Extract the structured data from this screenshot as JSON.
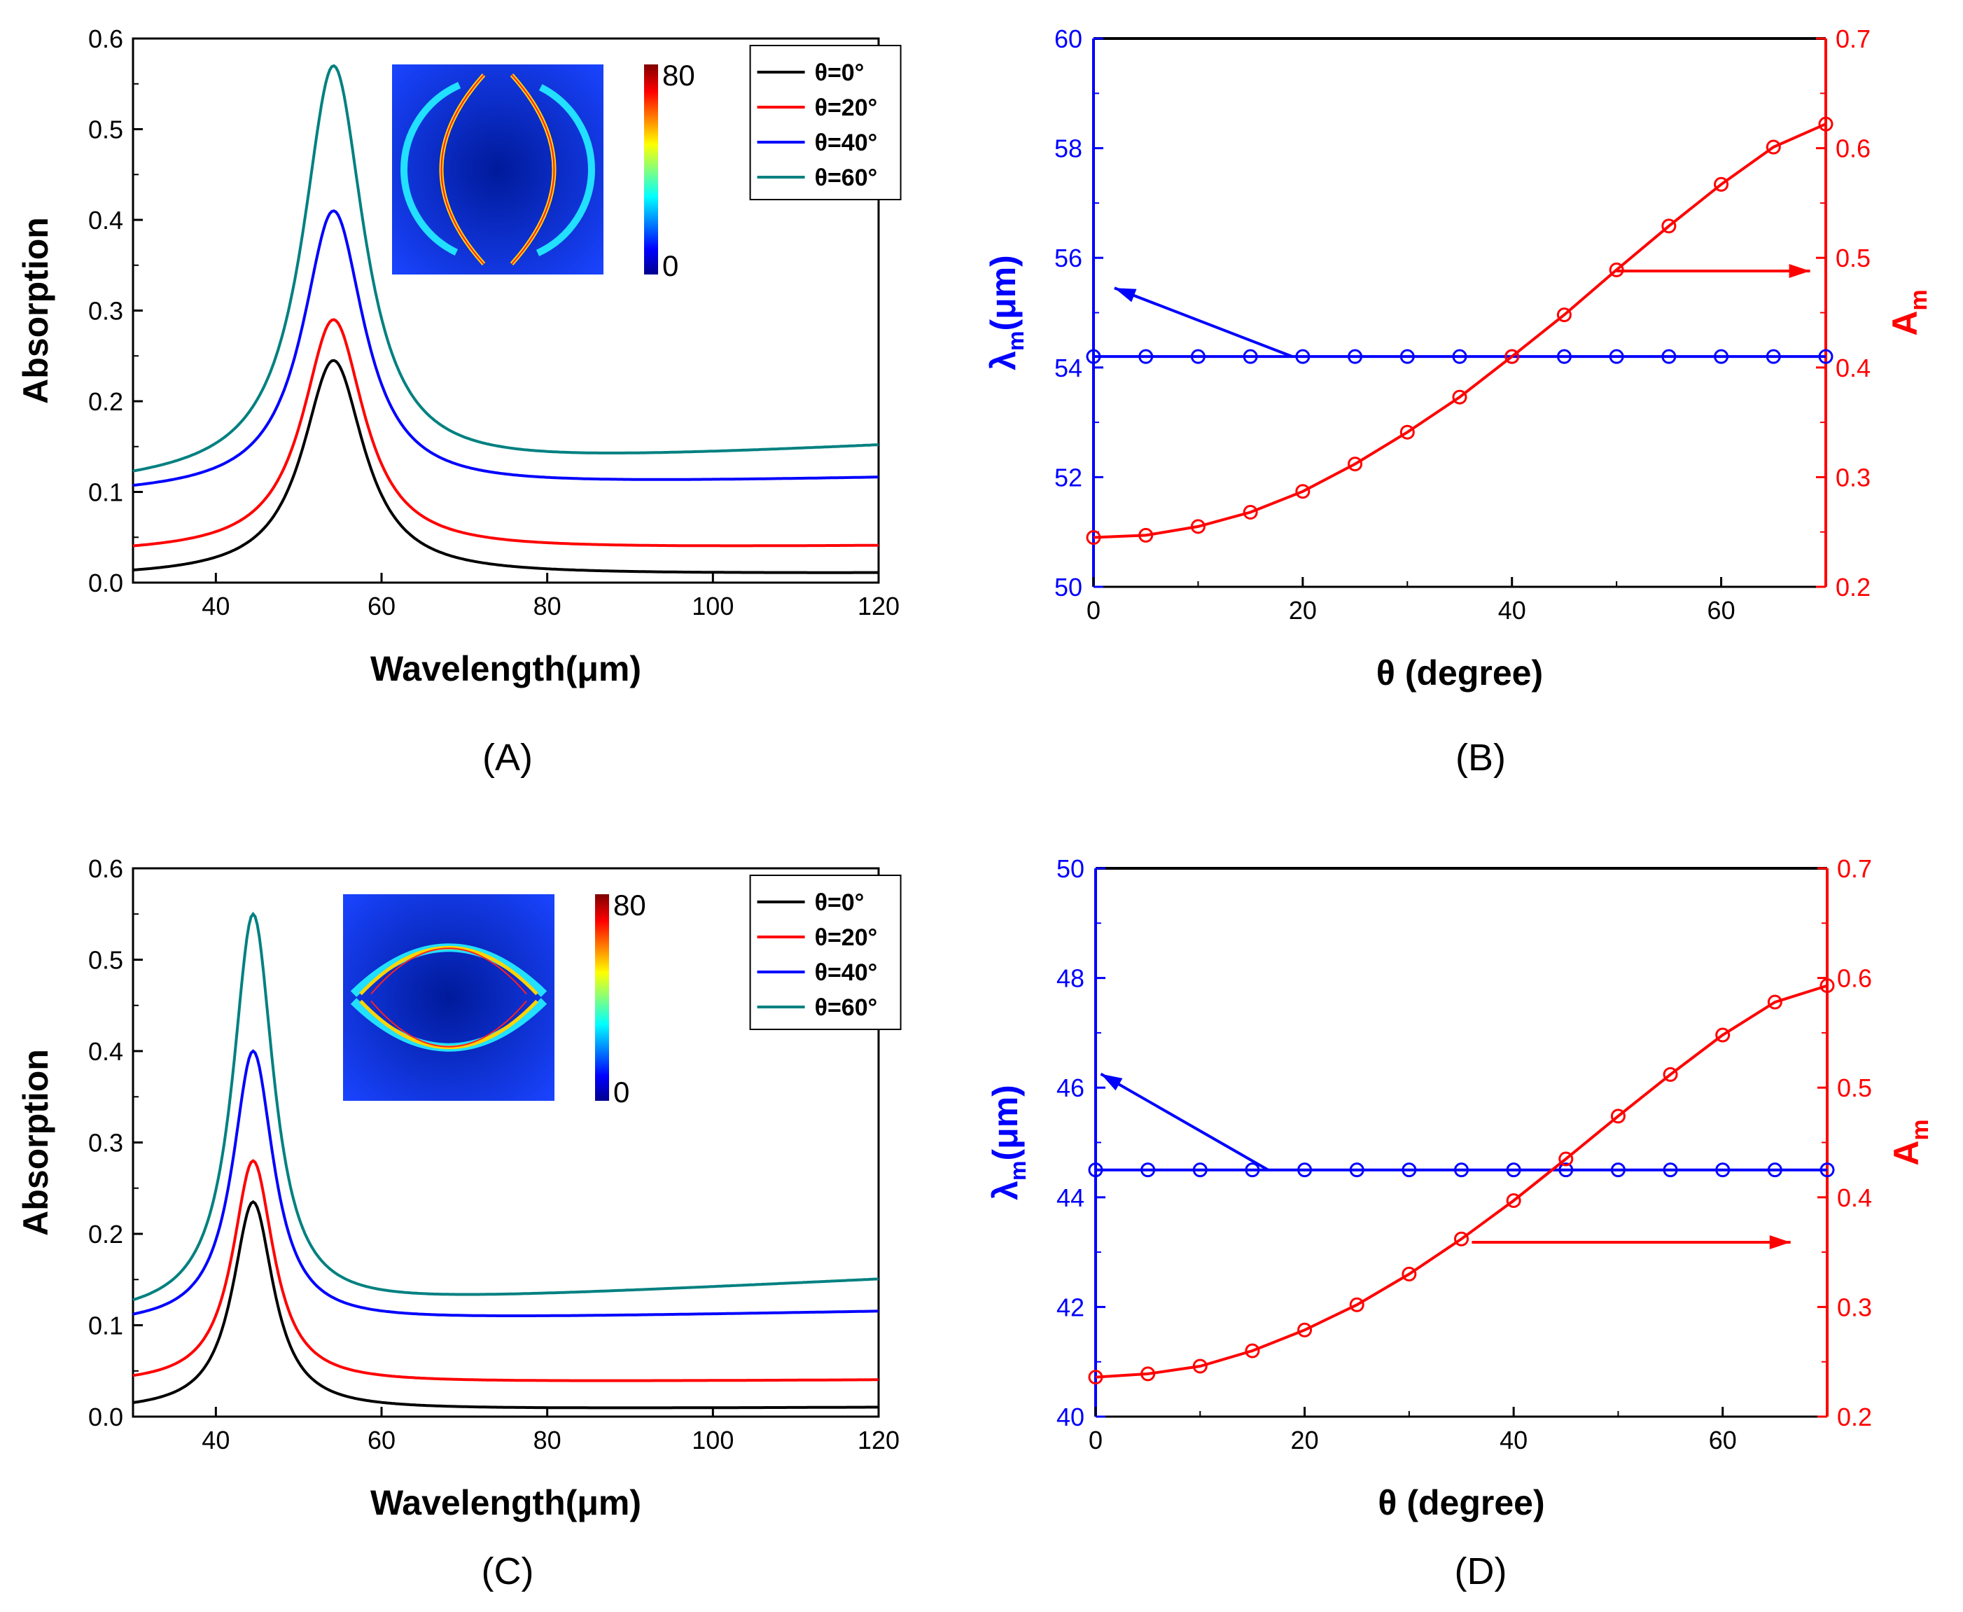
{
  "chart_data": [
    {
      "id": "A",
      "type": "line",
      "panel_label": "(A)",
      "xlabel": "Wavelength(μm)",
      "ylabel": "Absorption",
      "xlim": [
        30,
        120
      ],
      "ylim": [
        0.0,
        0.6
      ],
      "xticks": [
        "40",
        "60",
        "80",
        "100",
        "120"
      ],
      "yticks": [
        "0.0",
        "0.1",
        "0.2",
        "0.3",
        "0.4",
        "0.5",
        "0.6"
      ],
      "peak_x": 54.2,
      "width": 4.5,
      "legend_position": "top-right",
      "series": [
        {
          "name": "θ=0°",
          "color": "#000000",
          "peak": 0.245,
          "baseline": 0.006,
          "tail": 0.01
        },
        {
          "name": "θ=20°",
          "color": "#ff0000",
          "peak": 0.29,
          "baseline": 0.032,
          "tail": 0.04
        },
        {
          "name": "θ=40°",
          "color": "#0000ff",
          "peak": 0.41,
          "baseline": 0.097,
          "tail": 0.115
        },
        {
          "name": "θ=60°",
          "color": "#008080",
          "peak": 0.57,
          "baseline": 0.108,
          "tail": 0.15
        }
      ],
      "inset": {
        "pattern": "vertical",
        "colorbar_max": "80",
        "colorbar_min": "0"
      }
    },
    {
      "id": "B",
      "type": "line",
      "panel_label": "(B)",
      "xlabel": "θ (degree)",
      "ylabel_left": "λ",
      "ylabel_left_sub": "m",
      "ylabel_left_unit": "(μm)",
      "ylabel_right": "A",
      "ylabel_right_sub": "m",
      "xlim": [
        0,
        70
      ],
      "ylim_left": [
        50,
        60
      ],
      "ylim_right": [
        0.2,
        0.7
      ],
      "xticks": [
        "0",
        "20",
        "40",
        "60"
      ],
      "yticks_left": [
        "50",
        "52",
        "54",
        "56",
        "58",
        "60"
      ],
      "yticks_right": [
        "0.2",
        "0.3",
        "0.4",
        "0.5",
        "0.6",
        "0.7"
      ],
      "x": [
        0,
        5,
        10,
        15,
        20,
        25,
        30,
        35,
        40,
        45,
        50,
        55,
        60,
        65,
        70
      ],
      "series": [
        {
          "name": "λm",
          "axis": "left",
          "color": "#0000ff",
          "values": [
            54.2,
            54.2,
            54.2,
            54.2,
            54.2,
            54.2,
            54.2,
            54.2,
            54.2,
            54.2,
            54.2,
            54.2,
            54.2,
            54.2,
            54.2
          ]
        },
        {
          "name": "Am",
          "axis": "right",
          "color": "#ff0000",
          "values": [
            0.245,
            0.247,
            0.255,
            0.268,
            0.287,
            0.312,
            0.341,
            0.373,
            0.41,
            0.448,
            0.489,
            0.529,
            0.567,
            0.601,
            0.622
          ]
        }
      ],
      "arrows": {
        "left": {
          "from": [
            19,
            54.2
          ],
          "to": [
            2,
            55.45
          ]
        },
        "right": {
          "from": [
            50,
            0.488
          ],
          "to": [
            68.5,
            0.488
          ]
        }
      }
    },
    {
      "id": "C",
      "type": "line",
      "panel_label": "(C)",
      "xlabel": "Wavelength(μm)",
      "ylabel": "Absorption",
      "xlim": [
        30,
        120
      ],
      "ylim": [
        0.0,
        0.6
      ],
      "xticks": [
        "40",
        "60",
        "80",
        "100",
        "120"
      ],
      "yticks": [
        "0.0",
        "0.1",
        "0.2",
        "0.3",
        "0.4",
        "0.5",
        "0.6"
      ],
      "peak_x": 44.5,
      "width": 3.0,
      "legend_position": "top-right",
      "series": [
        {
          "name": "θ=0°",
          "color": "#000000",
          "peak": 0.235,
          "baseline": 0.006,
          "tail": 0.01
        },
        {
          "name": "θ=20°",
          "color": "#ff0000",
          "peak": 0.28,
          "baseline": 0.035,
          "tail": 0.04
        },
        {
          "name": "θ=40°",
          "color": "#0000ff",
          "peak": 0.4,
          "baseline": 0.1,
          "tail": 0.115
        },
        {
          "name": "θ=60°",
          "color": "#008080",
          "peak": 0.55,
          "baseline": 0.11,
          "tail": 0.15
        }
      ],
      "inset": {
        "pattern": "horizontal",
        "colorbar_max": "80",
        "colorbar_min": "0"
      }
    },
    {
      "id": "D",
      "type": "line",
      "panel_label": "(D)",
      "xlabel": "θ (degree)",
      "ylabel_left": "λ",
      "ylabel_left_sub": "m",
      "ylabel_left_unit": "(μm)",
      "ylabel_right": "A",
      "ylabel_right_sub": "m",
      "xlim": [
        0,
        70
      ],
      "ylim_left": [
        40,
        50
      ],
      "ylim_right": [
        0.2,
        0.7
      ],
      "xticks": [
        "0",
        "20",
        "40",
        "60"
      ],
      "yticks_left": [
        "40",
        "42",
        "44",
        "46",
        "48",
        "50"
      ],
      "yticks_right": [
        "0.2",
        "0.3",
        "0.4",
        "0.5",
        "0.6",
        "0.7"
      ],
      "x": [
        0,
        5,
        10,
        15,
        20,
        25,
        30,
        35,
        40,
        45,
        50,
        55,
        60,
        65,
        70
      ],
      "series": [
        {
          "name": "λm",
          "axis": "left",
          "color": "#0000ff",
          "values": [
            44.5,
            44.5,
            44.5,
            44.5,
            44.5,
            44.5,
            44.5,
            44.5,
            44.5,
            44.5,
            44.5,
            44.5,
            44.5,
            44.5,
            44.5
          ]
        },
        {
          "name": "Am",
          "axis": "right",
          "color": "#ff0000",
          "values": [
            0.236,
            0.239,
            0.246,
            0.26,
            0.279,
            0.302,
            0.33,
            0.362,
            0.397,
            0.435,
            0.474,
            0.512,
            0.548,
            0.578,
            0.593
          ]
        }
      ],
      "arrows": {
        "left": {
          "from": [
            16.5,
            44.5
          ],
          "to": [
            0.5,
            46.25
          ]
        },
        "right": {
          "from": [
            36,
            0.359
          ],
          "to": [
            66.5,
            0.359
          ]
        }
      }
    }
  ]
}
